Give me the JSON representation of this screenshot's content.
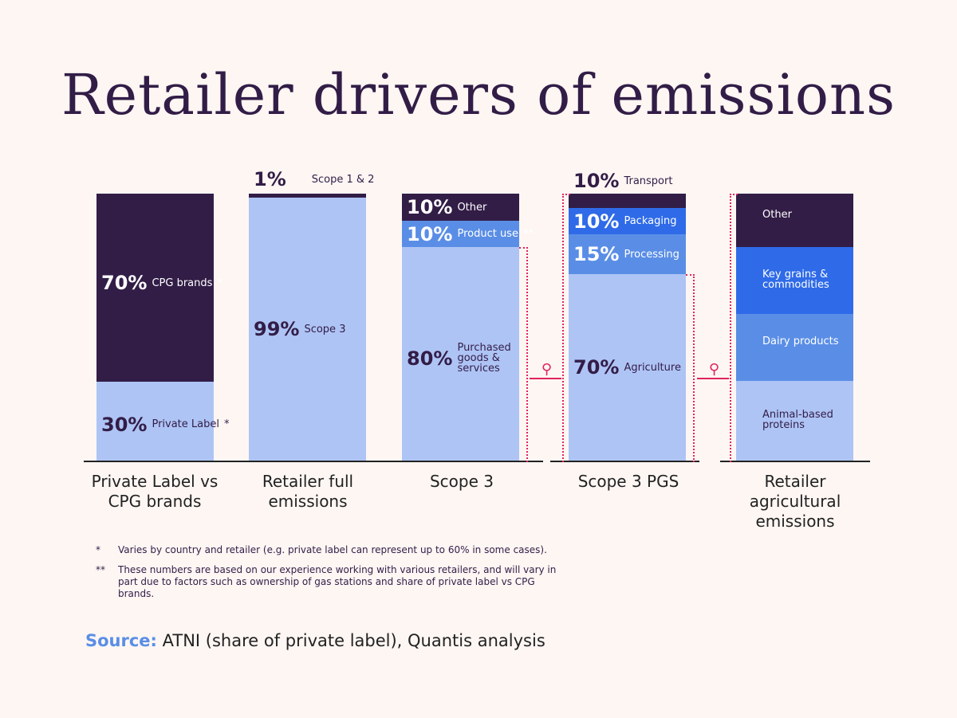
{
  "chart_data": {
    "type": "bar",
    "title": "Retailer drivers of emissions",
    "stacked": true,
    "bars": [
      {
        "category": "Private Label vs CPG brands",
        "segments": [
          {
            "label": "Private Label",
            "value": 30,
            "pct": "30%",
            "star": "*",
            "color": "#aec4f5"
          },
          {
            "label": "CPG brands",
            "value": 70,
            "pct": "70%",
            "star": "*",
            "color": "#321d47"
          }
        ]
      },
      {
        "category": "Retailer full emissions",
        "segments": [
          {
            "label": "Scope 3",
            "value": 99,
            "pct": "99%",
            "color": "#aec4f5"
          },
          {
            "label": "Scope 1 & 2",
            "value": 1,
            "pct": "1%",
            "color": "#321d47"
          }
        ]
      },
      {
        "category": "Scope 3",
        "segments": [
          {
            "label": "Purchased goods & services",
            "value": 80,
            "pct": "80%",
            "color": "#aec4f5"
          },
          {
            "label": "Product use",
            "value": 10,
            "pct": "10%",
            "star": "**",
            "color": "#5a8ee6"
          },
          {
            "label": "Other",
            "value": 10,
            "pct": "10%",
            "color": "#321d47"
          }
        ]
      },
      {
        "category": "Scope 3 PGS",
        "segments": [
          {
            "label": "Agriculture",
            "value": 70,
            "pct": "70%",
            "color": "#aec4f5"
          },
          {
            "label": "Processing",
            "value": 15,
            "pct": "15%",
            "color": "#5a8ee6"
          },
          {
            "label": "Packaging",
            "value": 10,
            "pct": "10%",
            "color": "#2f6be8"
          },
          {
            "label": "Transport",
            "value": 10,
            "pct": "10%",
            "color": "#321d47"
          }
        ]
      },
      {
        "category": "Retailer agricultural emissions",
        "segments": [
          {
            "label": "Animal-based proteins",
            "color": "#aec4f5"
          },
          {
            "label": "Dairy products",
            "color": "#5a8ee6"
          },
          {
            "label": "Key grains & commodities",
            "color": "#2f6be8"
          },
          {
            "label": "Other",
            "color": "#321d47"
          }
        ]
      }
    ]
  },
  "footnotes": [
    {
      "mark": "*",
      "text": "Varies by country and retailer (e.g. private label can represent up to 60% in some cases)."
    },
    {
      "mark": "**",
      "text": "These numbers are based on our experience working with various retailers, and will vary in part due to factors such as ownership of gas stations and share of private label vs CPG brands."
    }
  ],
  "source": {
    "label": "Source:",
    "text": "ATNI (share of private label), Quantis analysis"
  },
  "colors": {
    "accent": "#e0245e",
    "source_label": "#5a8ee6",
    "background": "#fdf6f3"
  }
}
